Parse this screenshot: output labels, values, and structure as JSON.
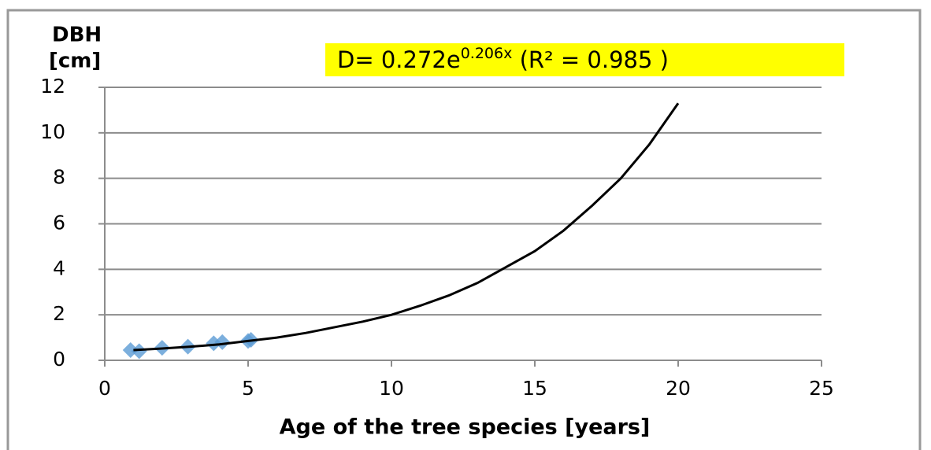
{
  "chart_data": {
    "type": "scatter",
    "y_label": [
      "DBH",
      "[cm]"
    ],
    "x_label": "Age of the tree species [years]",
    "equation": {
      "base": "D= 0.272e",
      "exponent": "0.206x",
      "rest": " (R² = 0.985 )"
    },
    "xlim": [
      0,
      25
    ],
    "xticks": [
      0,
      5,
      10,
      15,
      20,
      25
    ],
    "ylim": [
      0,
      12
    ],
    "yticks": [
      0,
      2,
      4,
      6,
      8,
      10,
      12
    ],
    "grid": true,
    "series": [
      {
        "color": "#5b9bd5",
        "x": [
          0.9,
          1.2,
          2,
          2.9,
          3.8,
          4.1,
          5,
          5.1
        ],
        "values": [
          0.45,
          0.4,
          0.55,
          0.6,
          0.75,
          0.8,
          0.85,
          0.9
        ]
      },
      {
        "color": "#000000",
        "x": [
          1,
          2,
          3,
          4,
          5,
          6,
          7,
          8,
          9,
          10,
          11,
          12,
          13,
          14,
          15,
          16,
          17,
          18,
          19,
          20
        ],
        "values": [
          0.45,
          0.52,
          0.6,
          0.7,
          0.85,
          1.0,
          1.2,
          1.45,
          1.7,
          2.0,
          2.4,
          2.85,
          3.4,
          4.1,
          4.8,
          5.7,
          6.8,
          8.0,
          9.5,
          11.3
        ]
      }
    ]
  }
}
